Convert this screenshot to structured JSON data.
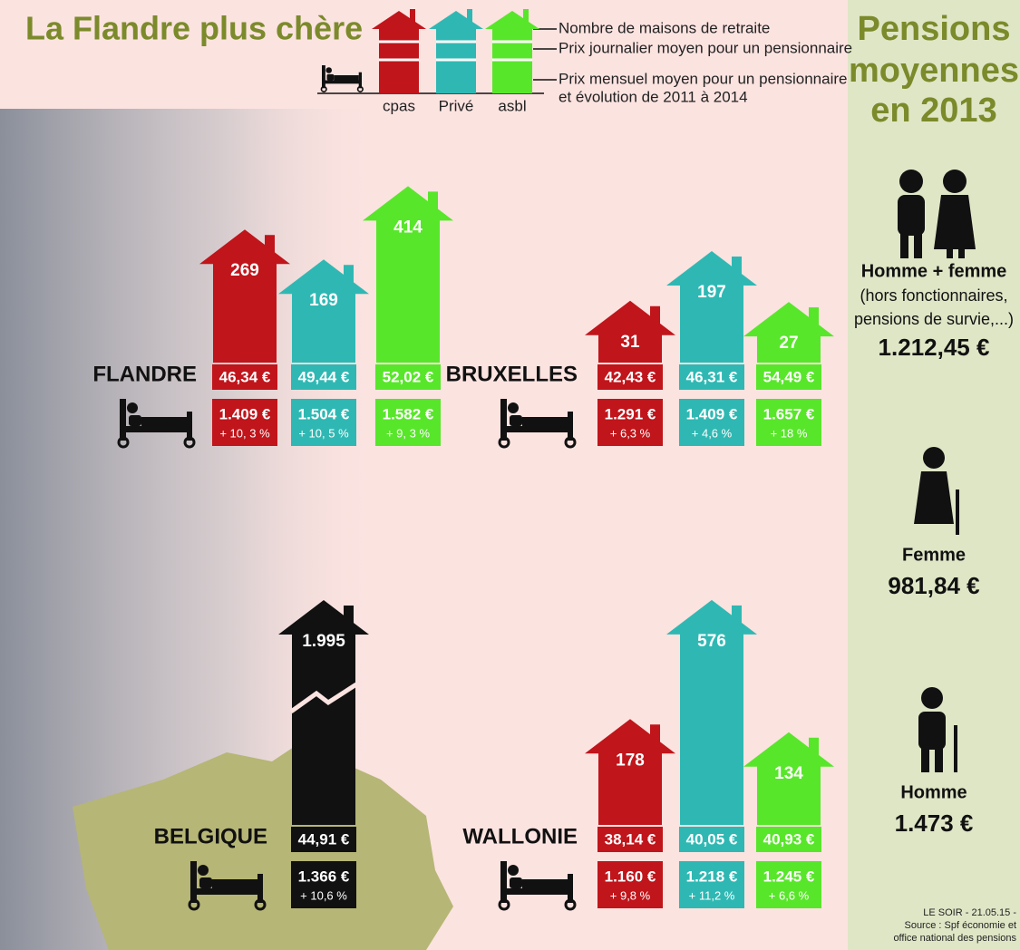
{
  "title": "La Flandre plus chère",
  "chart_data": {
    "type": "bar",
    "categories": [
      "cpas",
      "Privé",
      "asbl"
    ],
    "colors": [
      "#c0151b",
      "#2fb8b3",
      "#58e62a"
    ],
    "legend": [
      "Nombre de maisons de retraite",
      "Prix journalier moyen pour un pensionnaire",
      "Prix mensuel moyen pour un pensionnaire",
      "et évolution de 2011 à 2014"
    ],
    "regions": [
      {
        "name": "FLANDRE",
        "values": [
          269,
          169,
          414
        ],
        "daily": [
          "46,34 €",
          "49,44 €",
          "52,02 €"
        ],
        "monthly": [
          "1.409 €",
          "1.504 €",
          "1.582 €"
        ],
        "change": [
          "+ 10, 3 %",
          "+ 10, 5 %",
          "+ 9, 3 %"
        ]
      },
      {
        "name": "BRUXELLES",
        "values": [
          31,
          197,
          27
        ],
        "daily": [
          "42,43 €",
          "46,31 €",
          "54,49 €"
        ],
        "monthly": [
          "1.291 €",
          "1.409 €",
          "1.657 €"
        ],
        "change": [
          "+ 6,3 %",
          "+ 4,6 %",
          "+ 18 %"
        ]
      },
      {
        "name": "BELGIQUE",
        "values": [
          1995
        ],
        "value_labels": [
          "1.995"
        ],
        "color": "#111111",
        "broken": true,
        "daily": [
          "44,91 €"
        ],
        "monthly": [
          "1.366 €"
        ],
        "change": [
          "+ 10,6 %"
        ]
      },
      {
        "name": "WALLONIE",
        "values": [
          178,
          576,
          134
        ],
        "daily": [
          "38,14 €",
          "40,05 €",
          "40,93 €"
        ],
        "monthly": [
          "1.160 €",
          "1.218 €",
          "1.245 €"
        ],
        "change": [
          "+ 9,8 %",
          "+ 11,2 %",
          "+ 6,6 %"
        ]
      }
    ]
  },
  "pensions": {
    "title": [
      "Pensions",
      "moyennes",
      "en 2013"
    ],
    "items": [
      {
        "label": "Homme + femme",
        "note": [
          "(hors fonctionnaires,",
          "pensions de survie,...)"
        ],
        "value": "1.212,45 €"
      },
      {
        "label": "Femme",
        "value": "981,84 €"
      },
      {
        "label": "Homme",
        "value": "1.473 €"
      }
    ]
  },
  "source": [
    "LE SOIR - 21.05.15 -",
    "Source : Spf économie et",
    "office national des pensions"
  ]
}
